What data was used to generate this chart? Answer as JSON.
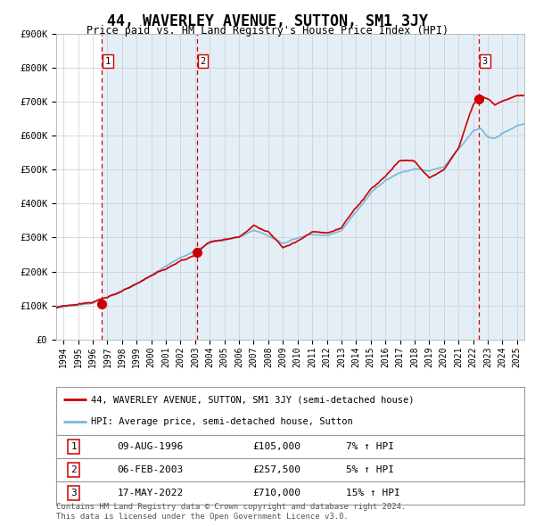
{
  "title": "44, WAVERLEY AVENUE, SUTTON, SM1 3JY",
  "subtitle": "Price paid vs. HM Land Registry's House Price Index (HPI)",
  "legend_line1": "44, WAVERLEY AVENUE, SUTTON, SM1 3JY (semi-detached house)",
  "legend_line2": "HPI: Average price, semi-detached house, Sutton",
  "footer1": "Contains HM Land Registry data © Crown copyright and database right 2024.",
  "footer2": "This data is licensed under the Open Government Licence v3.0.",
  "sales": [
    {
      "num": 1,
      "date": "09-AUG-1996",
      "price": 105000,
      "pct": "7%",
      "year": 1996.6
    },
    {
      "num": 2,
      "date": "06-FEB-2003",
      "price": 257500,
      "pct": "5%",
      "year": 2003.1
    },
    {
      "num": 3,
      "date": "17-MAY-2022",
      "price": 710000,
      "pct": "15%",
      "year": 2022.37
    }
  ],
  "ylim": [
    0,
    900000
  ],
  "xlim_start": 1993.5,
  "xlim_end": 2025.5,
  "hpi_color": "#7ab8d9",
  "price_color": "#cc0000",
  "sale_marker_color": "#cc0000",
  "bg_color": "#ffffff",
  "chart_bg": "#ffffff",
  "shade_color": "#dce9f5",
  "grid_color": "#cccccc",
  "title_fontsize": 12,
  "subtitle_fontsize": 9,
  "tick_years": [
    1994,
    1995,
    1996,
    1997,
    1998,
    1999,
    2000,
    2001,
    2002,
    2003,
    2004,
    2005,
    2006,
    2007,
    2008,
    2009,
    2010,
    2011,
    2012,
    2013,
    2014,
    2015,
    2016,
    2017,
    2018,
    2019,
    2020,
    2021,
    2022,
    2023,
    2024,
    2025
  ]
}
